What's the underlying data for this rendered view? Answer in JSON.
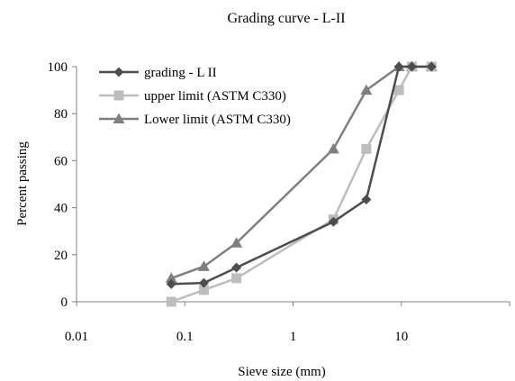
{
  "chart_data": {
    "type": "line",
    "title": "Grading curve - L-II",
    "xlabel": "Sieve size (mm)",
    "ylabel": "Percent passing",
    "xscale": "log",
    "xlim": [
      0.01,
      100
    ],
    "ylim": [
      0,
      100
    ],
    "xticks": [
      "0.01",
      "0.1",
      "1",
      "10"
    ],
    "yticks": [
      "0",
      "20",
      "40",
      "60",
      "80",
      "100"
    ],
    "grid": false,
    "legend_position": "top-left",
    "series": [
      {
        "name": "grading - L II",
        "color": "#4d4d4d",
        "marker": "diamond",
        "x": [
          0.075,
          0.15,
          0.3,
          2.36,
          4.75,
          9.5,
          12.5,
          19
        ],
        "y": [
          7.5,
          8,
          14.5,
          34,
          43.5,
          100,
          100,
          100
        ]
      },
      {
        "name": "upper limit  (ASTM C330)",
        "color": "#bdbdbd",
        "marker": "square",
        "x": [
          0.075,
          0.15,
          0.3,
          2.36,
          4.75,
          9.5,
          12.5,
          19
        ],
        "y": [
          0,
          5,
          10,
          35,
          65,
          90,
          100,
          100
        ]
      },
      {
        "name": "Lower limit (ASTM C330)",
        "color": "#7f7f7f",
        "marker": "triangle",
        "x": [
          0.075,
          0.15,
          0.3,
          2.36,
          4.75,
          9.5,
          12.5,
          19
        ],
        "y": [
          10,
          15,
          25,
          65,
          90,
          100,
          100,
          100
        ]
      }
    ]
  }
}
